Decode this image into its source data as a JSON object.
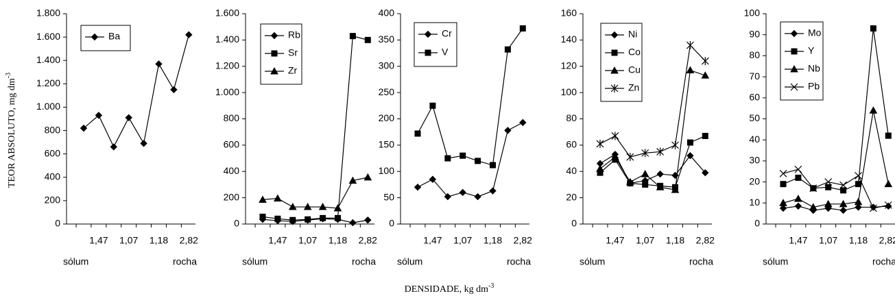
{
  "ylabel": {
    "text": "TEOR ABSOLUTO, mg dm",
    "sup": "-3"
  },
  "xlabel": {
    "text": "DENSIDADE, kg dm",
    "sup": "-3"
  },
  "chart_data": [
    {
      "type": "line",
      "legend": "upper left",
      "categories": [
        null,
        "1,47",
        null,
        "1,07",
        null,
        "1,18",
        null,
        "2,82"
      ],
      "annotations": [
        "sólum",
        "rocha"
      ],
      "ylim": [
        0,
        1800
      ],
      "yticks": [
        0,
        200,
        400,
        600,
        800,
        {
          "value": 1000,
          "label": "1.000"
        },
        {
          "value": 1200,
          "label": "1.200"
        },
        {
          "value": 1400,
          "label": "1.400"
        },
        {
          "value": 1600,
          "label": "1.600"
        },
        {
          "value": 1800,
          "label": "1.800"
        }
      ],
      "series": [
        {
          "name": "Ba",
          "color": "#000000",
          "marker": "diamond",
          "values": [
            820,
            930,
            660,
            910,
            690,
            1370,
            1150,
            1620
          ]
        }
      ]
    },
    {
      "type": "line",
      "legend": "upper left",
      "categories": [
        null,
        "1,47",
        null,
        "1,07",
        null,
        "1,18",
        null,
        "2,82"
      ],
      "annotations": [
        "sólum",
        "rocha"
      ],
      "ylim": [
        0,
        1600
      ],
      "yticks": [
        0,
        200,
        400,
        600,
        800,
        {
          "value": 1000,
          "label": "1.000"
        },
        {
          "value": 1200,
          "label": "1.200"
        },
        {
          "value": 1400,
          "label": "1.400"
        },
        {
          "value": 1600,
          "label": "1.600"
        }
      ],
      "series": [
        {
          "name": "Rb",
          "color": "#000000",
          "marker": "diamond",
          "values": [
            35,
            25,
            20,
            30,
            40,
            35,
            10,
            30
          ]
        },
        {
          "name": "Sr",
          "color": "#000000",
          "marker": "square",
          "values": [
            55,
            40,
            30,
            35,
            45,
            45,
            1430,
            1400
          ]
        },
        {
          "name": "Zr",
          "color": "#000000",
          "marker": "triangle",
          "values": [
            185,
            195,
            130,
            130,
            130,
            120,
            330,
            355
          ]
        }
      ]
    },
    {
      "type": "line",
      "legend": "upper left",
      "categories": [
        null,
        "1,47",
        null,
        "1,07",
        null,
        "1,18",
        null,
        "2,82"
      ],
      "annotations": [
        "sólum",
        "rocha"
      ],
      "ylim": [
        0,
        400
      ],
      "yticks": [
        0,
        50,
        100,
        150,
        200,
        250,
        300,
        350,
        400
      ],
      "series": [
        {
          "name": "Cr",
          "color": "#000000",
          "marker": "diamond",
          "values": [
            70,
            85,
            52,
            60,
            52,
            63,
            178,
            193
          ]
        },
        {
          "name": "V",
          "color": "#000000",
          "marker": "square",
          "values": [
            172,
            225,
            125,
            130,
            120,
            112,
            332,
            372
          ]
        }
      ]
    },
    {
      "type": "line",
      "legend": "upper left",
      "categories": [
        null,
        "1,47",
        null,
        "1,07",
        null,
        "1,18",
        null,
        "2,82"
      ],
      "annotations": [
        "sólum",
        "rocha"
      ],
      "ylim": [
        0,
        160
      ],
      "yticks": [
        0,
        20,
        40,
        60,
        80,
        100,
        120,
        140,
        160
      ],
      "series": [
        {
          "name": "Ni",
          "color": "#000000",
          "marker": "diamond",
          "values": [
            46,
            53,
            31,
            33,
            38,
            37,
            52,
            39
          ]
        },
        {
          "name": "Co",
          "color": "#000000",
          "marker": "square",
          "values": [
            39,
            49,
            31,
            30,
            29,
            28,
            62,
            67
          ]
        },
        {
          "name": "Cu",
          "color": "#000000",
          "marker": "triangle",
          "values": [
            42,
            51,
            32,
            38,
            28,
            26,
            117,
            113
          ]
        },
        {
          "name": "Zn",
          "color": "#000000",
          "marker": "star",
          "values": [
            61,
            67,
            51,
            54,
            55,
            60,
            136,
            124
          ]
        }
      ]
    },
    {
      "type": "line",
      "legend": "upper left",
      "categories": [
        null,
        "1,47",
        null,
        "1,07",
        null,
        "1,18",
        null,
        "2,82"
      ],
      "annotations": [
        "sólum",
        "rocha"
      ],
      "ylim": [
        0,
        100
      ],
      "yticks": [
        0,
        10,
        20,
        30,
        40,
        50,
        60,
        70,
        80,
        90,
        100
      ],
      "series": [
        {
          "name": "Mo",
          "color": "#000000",
          "marker": "diamond",
          "values": [
            7.5,
            8.5,
            6.5,
            7.5,
            6.5,
            8,
            8,
            8.5
          ]
        },
        {
          "name": "Y",
          "color": "#000000",
          "marker": "square",
          "values": [
            19,
            22,
            17,
            17.5,
            16,
            19,
            93,
            42
          ]
        },
        {
          "name": "Nb",
          "color": "#000000",
          "marker": "triangle",
          "values": [
            10,
            12,
            8,
            9.5,
            9.5,
            10.5,
            54,
            19
          ]
        },
        {
          "name": "Pb",
          "color": "#000000",
          "marker": "x",
          "values": [
            24,
            26,
            17,
            20,
            18.5,
            23,
            7.5,
            9
          ]
        }
      ]
    }
  ]
}
